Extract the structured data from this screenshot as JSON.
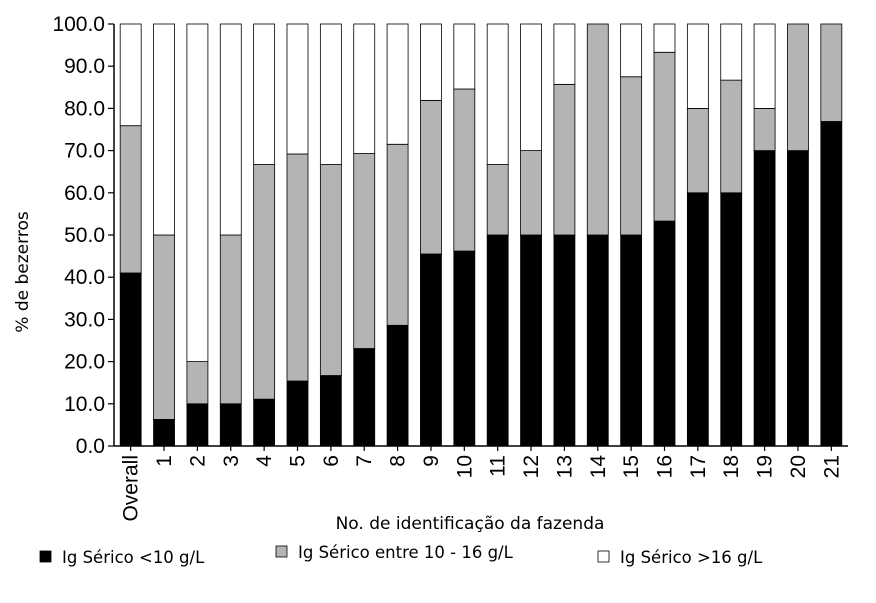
{
  "chart_data": {
    "type": "bar",
    "stacked": true,
    "orientation": "vertical",
    "categories": [
      "Overall",
      "1",
      "2",
      "3",
      "4",
      "5",
      "6",
      "7",
      "8",
      "9",
      "10",
      "11",
      "12",
      "13",
      "14",
      "15",
      "16",
      "17",
      "18",
      "19",
      "20",
      "21"
    ],
    "series": [
      {
        "name": "Ig Sérico <10 g/L",
        "color": "#000000",
        "values": [
          41,
          6.3,
          10,
          10,
          11.1,
          15.4,
          16.7,
          23.1,
          28.6,
          45.5,
          46.2,
          50,
          50,
          50,
          50,
          50,
          53.3,
          60,
          60,
          70,
          70,
          76.9
        ]
      },
      {
        "name": "Ig Sérico entre 10 - 16 g/L",
        "color": "#b4b4b4",
        "values": [
          34.9,
          43.7,
          10,
          40,
          55.6,
          53.8,
          50,
          46.2,
          42.9,
          36.4,
          38.4,
          16.7,
          20,
          35.7,
          50,
          37.5,
          40,
          20,
          26.7,
          10,
          30,
          23.1
        ]
      },
      {
        "name": "Ig Sérico >16 g/L",
        "color": "#ffffff",
        "values": [
          24.1,
          50,
          80,
          50,
          33.3,
          30.8,
          33.3,
          30.7,
          28.5,
          18.1,
          15.4,
          33.3,
          30,
          14.3,
          0,
          12.5,
          6.7,
          20,
          13.3,
          20,
          0,
          0
        ]
      }
    ],
    "xlabel": "No. de identificação da fazenda",
    "ylabel": "% de bezerros",
    "ylim": [
      0,
      100
    ],
    "yticks": [
      "0.0",
      "10.0",
      "20.0",
      "30.0",
      "40.0",
      "50.0",
      "60.0",
      "70.0",
      "80.0",
      "90.0",
      "100.0"
    ],
    "grid": false,
    "legend_position": "bottom"
  }
}
